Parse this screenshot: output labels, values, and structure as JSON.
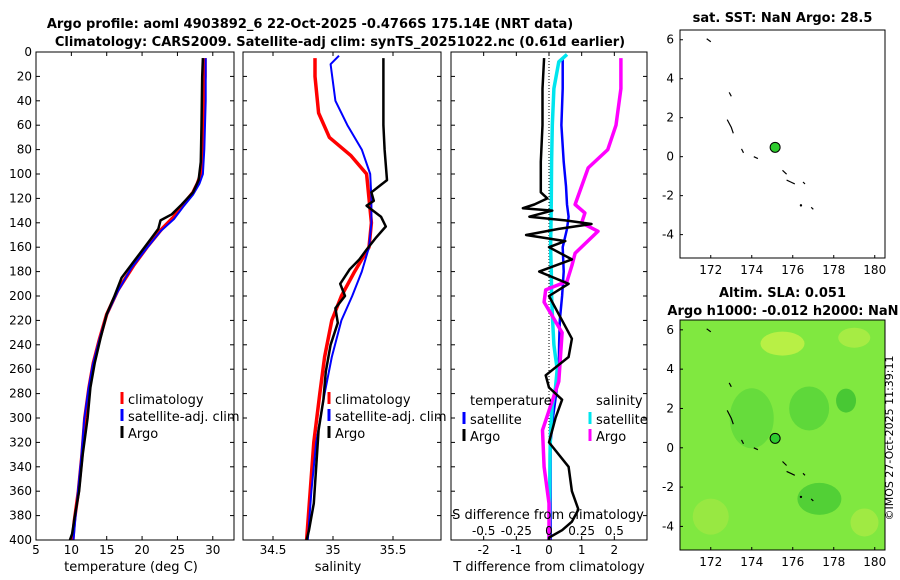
{
  "title": {
    "line1": "Argo profile: aoml 4903892_6 22-Oct-2025 -0.4766S 175.14E (NRT data)",
    "line2": "Climatology: CARS2009. Satellite-adj clim: synTS_20251022.nc (0.61d earlier)"
  },
  "watermark": "©IMOS 27-Oct-2025 11:39:11",
  "colors": {
    "climatology": "#ff0000",
    "satellite": "#0000ff",
    "argo": "#000000",
    "salinity_satellite": "#00e5ee",
    "salinity_argo": "#ff00ff",
    "land": "#000000",
    "sla_field": "#80e840",
    "marker": "#2ecc2e"
  },
  "chart_data": [
    {
      "id": "temperature",
      "type": "line",
      "xlabel": "temperature (deg C)",
      "xlim": [
        5,
        33
      ],
      "xticks": [
        "5",
        "10",
        "15",
        "20",
        "25",
        "30"
      ],
      "ylim": [
        400,
        0
      ],
      "yticks": [
        "0",
        "20",
        "40",
        "60",
        "80",
        "100",
        "120",
        "140",
        "160",
        "180",
        "200",
        "220",
        "240",
        "260",
        "280",
        "300",
        "320",
        "340",
        "360",
        "380",
        "400"
      ],
      "legend": [
        "climatology",
        "satellite-adj. clim",
        "Argo"
      ],
      "series": [
        {
          "name": "climatology",
          "color": "#ff0000",
          "width": 3.5,
          "x": [
            28.9,
            28.9,
            28.7,
            28.6,
            28.5,
            28.3,
            27.8,
            27.2,
            25.8,
            24.5,
            22.8,
            20.7,
            18.8,
            16.6,
            15.0,
            14.0,
            13.1,
            12.5,
            11.9,
            11.5,
            11.0,
            10.4,
            10.2
          ],
          "y": [
            5,
            20,
            40,
            60,
            80,
            100,
            108,
            115,
            125,
            135,
            145,
            160,
            175,
            195,
            215,
            235,
            255,
            275,
            300,
            330,
            360,
            385,
            400
          ]
        },
        {
          "name": "satellite-adj. clim",
          "color": "#0000ff",
          "width": 2,
          "x": [
            29.0,
            29.0,
            29.0,
            28.9,
            28.8,
            28.6,
            28.1,
            27.2,
            25.8,
            24.5,
            22.6,
            20.5,
            18.5,
            16.5,
            14.9,
            13.9,
            13.0,
            12.4,
            11.8,
            11.4,
            10.9,
            10.5,
            10.3
          ],
          "y": [
            5,
            20,
            40,
            60,
            80,
            100,
            108,
            117,
            127,
            137,
            147,
            162,
            177,
            197,
            217,
            237,
            257,
            277,
            302,
            332,
            362,
            387,
            400
          ]
        },
        {
          "name": "Argo",
          "color": "#000000",
          "width": 2.5,
          "x": [
            28.6,
            28.5,
            28.4,
            28.3,
            28.0,
            27.2,
            25.6,
            24.2,
            22.6,
            22.3,
            21.4,
            20.1,
            18.8,
            17.1,
            16.1,
            15.0,
            14.1,
            13.3,
            12.7,
            12.3,
            11.6,
            11.1,
            10.5,
            10.1,
            9.8
          ],
          "y": [
            5,
            20,
            60,
            90,
            105,
            115,
            125,
            133,
            138,
            145,
            152,
            162,
            172,
            185,
            200,
            215,
            235,
            255,
            275,
            300,
            330,
            360,
            380,
            395,
            400
          ]
        }
      ]
    },
    {
      "id": "salinity",
      "type": "line",
      "xlabel": "salinity",
      "xlim": [
        34.25,
        35.9
      ],
      "xticks": [
        "34.5",
        "35",
        "35.5"
      ],
      "ylim": [
        400,
        0
      ],
      "legend": [
        "climatology",
        "satellite-adj. clim",
        "Argo"
      ],
      "series": [
        {
          "name": "climatology",
          "color": "#ff0000",
          "width": 3.5,
          "x": [
            34.85,
            34.85,
            34.88,
            34.97,
            35.15,
            35.28,
            35.3,
            35.32,
            35.3,
            35.18,
            35.07,
            34.99,
            34.93,
            34.89,
            34.84,
            34.81,
            34.78
          ],
          "y": [
            5,
            20,
            50,
            70,
            85,
            100,
            120,
            140,
            160,
            180,
            200,
            220,
            250,
            280,
            320,
            360,
            400
          ]
        },
        {
          "name": "satellite-adj. clim",
          "color": "#0000ff",
          "width": 2,
          "x": [
            35.05,
            34.98,
            35.02,
            35.12,
            35.24,
            35.31,
            35.32,
            35.32,
            35.3,
            35.24,
            35.16,
            35.07,
            34.99,
            34.93,
            34.86,
            34.82,
            34.79
          ],
          "y": [
            3,
            10,
            40,
            60,
            80,
            100,
            120,
            140,
            160,
            180,
            200,
            220,
            250,
            280,
            320,
            360,
            400
          ]
        },
        {
          "name": "Argo",
          "color": "#000000",
          "width": 2.5,
          "x": [
            35.42,
            35.42,
            35.42,
            35.42,
            35.43,
            35.45,
            35.32,
            35.34,
            35.28,
            35.4,
            35.44,
            35.36,
            35.28,
            35.22,
            35.14,
            35.06,
            35.1,
            35.02,
            35.04,
            34.98,
            34.94,
            34.92,
            34.88,
            34.86,
            34.84,
            34.8,
            34.78
          ],
          "y": [
            5,
            20,
            40,
            60,
            80,
            105,
            115,
            122,
            126,
            135,
            143,
            152,
            162,
            170,
            178,
            190,
            200,
            210,
            222,
            240,
            262,
            285,
            310,
            340,
            370,
            392,
            400
          ]
        }
      ]
    },
    {
      "id": "difference",
      "type": "line",
      "xlabel": "T difference from climatology",
      "xlim": [
        -3,
        3
      ],
      "xticks": [
        "-2",
        "-1",
        "0",
        "1",
        "2"
      ],
      "top_xlabel": "S difference from climatology",
      "top_xticks": [
        "-0.5",
        "-0.25",
        "0",
        "0.25",
        "0.5"
      ],
      "ylim": [
        400,
        0
      ],
      "legend_left_title": "temperature",
      "legend_left": [
        "satellite",
        "Argo"
      ],
      "legend_right_title": "salinity",
      "legend_right": [
        "satellite",
        "Argo"
      ],
      "series": [
        {
          "name": "T satellite",
          "color": "#0000ff",
          "width": 2.5,
          "x": [
            0.42,
            0.42,
            0.38,
            0.45,
            0.52,
            0.55,
            0.6,
            0.55,
            0.42,
            0.45,
            0.4,
            0.33,
            0.31,
            0.3,
            0.22,
            0.12,
            0.05,
            0.05,
            0.05,
            0.05,
            0.05
          ],
          "y": [
            5,
            30,
            60,
            90,
            110,
            125,
            135,
            145,
            160,
            180,
            200,
            220,
            240,
            260,
            280,
            300,
            320,
            340,
            360,
            380,
            400
          ]
        },
        {
          "name": "S satellite",
          "color": "#00e5ee",
          "width": 3.5,
          "x": [
            0.55,
            0.3,
            0.15,
            0.1,
            0.08,
            0.07,
            0.06,
            0.05,
            0.07,
            0.08,
            0.11,
            0.15,
            0.2,
            0.25,
            0.2,
            0.1,
            0.05,
            0.03,
            0.02,
            0.01,
            0.0
          ],
          "y": [
            2,
            8,
            30,
            60,
            90,
            120,
            140,
            160,
            180,
            200,
            220,
            240,
            250,
            260,
            275,
            290,
            310,
            330,
            360,
            390,
            400
          ]
        },
        {
          "name": "S Argo",
          "color": "#ff00ff",
          "width": 3.5,
          "x": [
            2.2,
            2.2,
            2.05,
            1.8,
            1.2,
            0.8,
            1.1,
            1.0,
            1.5,
            0.8,
            0.7,
            0.55,
            -0.1,
            -0.15,
            0.4,
            0.3,
            0.05,
            -0.2,
            -0.15,
            0.0,
            0.0
          ],
          "y": [
            5,
            30,
            60,
            80,
            95,
            125,
            132,
            140,
            147,
            165,
            175,
            188,
            195,
            205,
            230,
            270,
            290,
            310,
            340,
            370,
            400
          ]
        },
        {
          "name": "T Argo",
          "color": "#000000",
          "width": 2.5,
          "x": [
            -0.15,
            -0.2,
            -0.2,
            -0.25,
            -0.25,
            -0.05,
            -0.45,
            -0.8,
            0.1,
            -0.6,
            0.5,
            1.3,
            0.3,
            -0.7,
            0.5,
            0.0,
            0.7,
            -0.3,
            0.6,
            0.0,
            0.3,
            0.7,
            0.6,
            -0.1,
            0.0,
            0.4,
            0.2,
            0.0,
            0.6,
            0.7,
            0.9,
            0.7,
            0.4,
            0.0,
            0.0
          ],
          "y": [
            5,
            30,
            60,
            90,
            115,
            120,
            125,
            128,
            130,
            135,
            138,
            141,
            145,
            150,
            155,
            160,
            170,
            180,
            190,
            200,
            215,
            235,
            250,
            265,
            275,
            285,
            300,
            320,
            340,
            360,
            375,
            385,
            392,
            398,
            400
          ]
        }
      ]
    },
    {
      "id": "sst_map",
      "type": "scatter",
      "title": "sat. SST: NaN Argo: 28.5",
      "xlim": [
        170.5,
        180.5
      ],
      "xticks": [
        "172",
        "174",
        "176",
        "178",
        "180"
      ],
      "ylim": [
        -5.2,
        6.5
      ],
      "yticks": [
        "-4",
        "-2",
        "0",
        "2",
        "4",
        "6"
      ],
      "marker": {
        "x": 175.14,
        "y": 0.48
      }
    },
    {
      "id": "sla_map",
      "type": "heatmap",
      "title": "Altim. SLA: 0.051",
      "subtitle": "Argo h1000: -0.012 h2000: NaN",
      "xlim": [
        170.5,
        180.5
      ],
      "xticks": [
        "172",
        "174",
        "176",
        "178",
        "180"
      ],
      "ylim": [
        -5.2,
        6.5
      ],
      "yticks": [
        "-4",
        "-2",
        "0",
        "2",
        "4",
        "6"
      ],
      "marker": {
        "x": 175.14,
        "y": 0.48
      }
    }
  ]
}
